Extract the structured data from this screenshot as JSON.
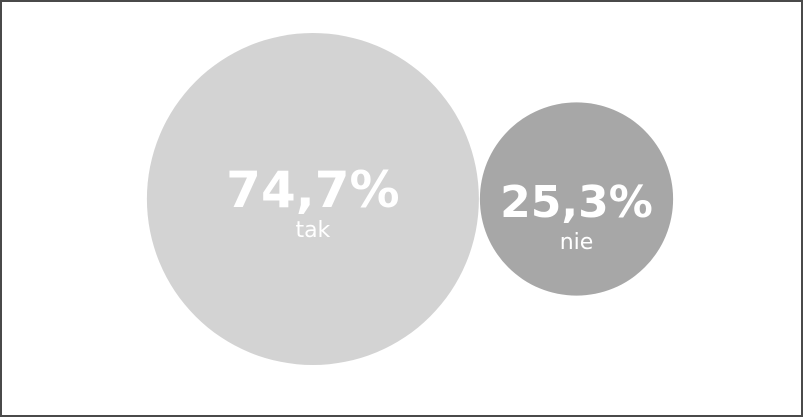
{
  "chart_data": {
    "type": "bubble",
    "items": [
      {
        "label": "tak",
        "value": 74.7,
        "value_text": "74,7%",
        "color": "#d3d3d3"
      },
      {
        "label": "nie",
        "value": 25.3,
        "value_text": "25,3%",
        "color": "#a7a7a7"
      }
    ]
  }
}
